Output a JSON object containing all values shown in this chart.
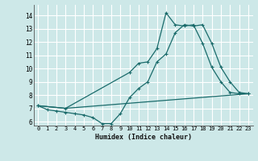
{
  "xlabel": "Humidex (Indice chaleur)",
  "bg_color": "#cde8e8",
  "grid_color": "#ffffff",
  "line_color": "#1a6b6b",
  "xlim": [
    -0.5,
    23.5
  ],
  "ylim": [
    5.7,
    14.8
  ],
  "xticks": [
    0,
    1,
    2,
    3,
    4,
    5,
    6,
    7,
    8,
    9,
    10,
    11,
    12,
    13,
    14,
    15,
    16,
    17,
    18,
    19,
    20,
    21,
    22,
    23
  ],
  "yticks": [
    6,
    7,
    8,
    9,
    10,
    11,
    12,
    13,
    14
  ],
  "line1_x": [
    0,
    1,
    2,
    3,
    4,
    5,
    6,
    7,
    8,
    9,
    10,
    11,
    12,
    13,
    14,
    15,
    16,
    17,
    18,
    19,
    20,
    21,
    22,
    23
  ],
  "line1_y": [
    7.2,
    6.9,
    6.8,
    6.7,
    6.6,
    6.5,
    6.3,
    5.85,
    5.85,
    6.6,
    7.8,
    8.5,
    9.0,
    10.5,
    11.1,
    12.7,
    13.3,
    13.2,
    13.3,
    11.9,
    10.1,
    9.0,
    8.2,
    8.1
  ],
  "line2_x": [
    0,
    3,
    10,
    11,
    12,
    13,
    14,
    15,
    16,
    17,
    18,
    19,
    20,
    21,
    22,
    23
  ],
  "line2_y": [
    7.2,
    7.0,
    9.7,
    10.4,
    10.5,
    11.5,
    14.2,
    13.3,
    13.2,
    13.3,
    11.9,
    10.1,
    9.0,
    8.2,
    8.1,
    8.1
  ],
  "line3_x": [
    0,
    3,
    23
  ],
  "line3_y": [
    7.2,
    7.0,
    8.1
  ]
}
